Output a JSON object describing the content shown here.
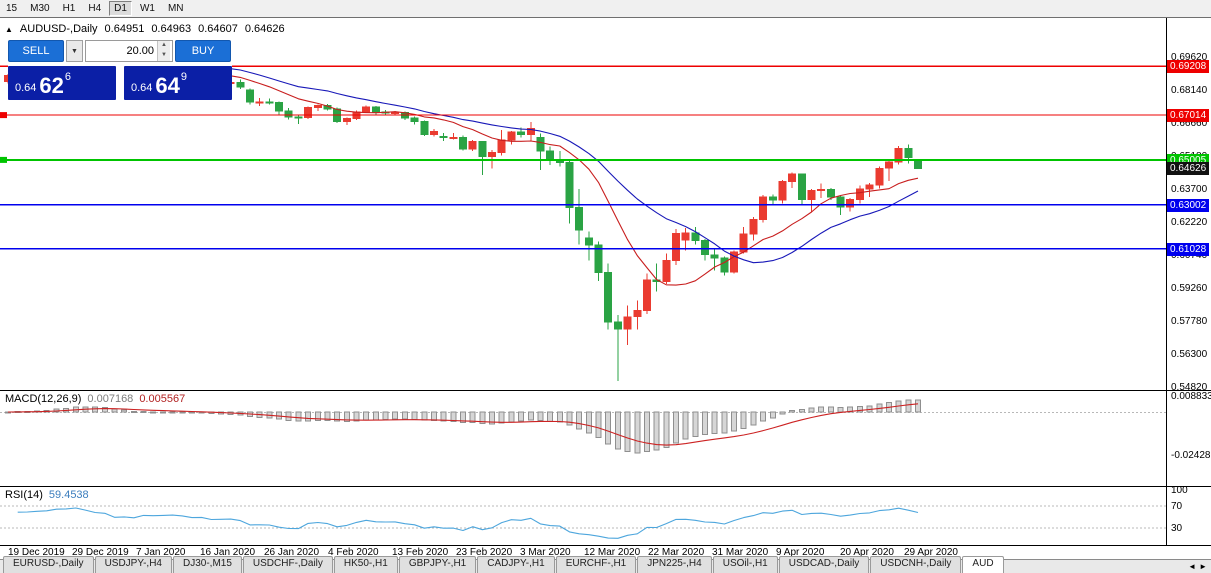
{
  "toolbar": {
    "timeframes": [
      {
        "label": "15",
        "active": false
      },
      {
        "label": "M30",
        "active": false
      },
      {
        "label": "H1",
        "active": false
      },
      {
        "label": "H4",
        "active": false
      },
      {
        "label": "D1",
        "active": true
      },
      {
        "label": "W1",
        "active": false
      },
      {
        "label": "MN",
        "active": false
      }
    ]
  },
  "icons": {
    "collapse": "▲",
    "dropdown": "▼",
    "spin_up": "▲",
    "spin_down": "▼",
    "tab_scroll_left": "◄",
    "tab_scroll_right": "►"
  },
  "chart_title": {
    "symbol": "AUDUSD-,Daily",
    "open": "0.64951",
    "high": "0.64963",
    "low": "0.64607",
    "close": "0.64626"
  },
  "one_click": {
    "sell_label": "SELL",
    "buy_label": "BUY",
    "volume": "20.00",
    "sell_price": {
      "prefix": "0.64",
      "big": "62",
      "sup": "6"
    },
    "buy_price": {
      "prefix": "0.64",
      "big": "64",
      "sup": "9"
    }
  },
  "chart_data": {
    "type": "candlestick",
    "symbol": "AUDUSD-",
    "timeframe": "Daily",
    "current_bar": {
      "open": 0.64951,
      "high": 0.64963,
      "low": 0.64607,
      "close": 0.64626
    },
    "up_color": "#ea3b30",
    "down_color": "#2aa344",
    "candles": [
      [
        "2019.12.19",
        0.6852,
        0.6885,
        0.6844,
        0.688
      ],
      [
        "2019.12.20",
        0.688,
        0.6905,
        0.6871,
        0.69
      ],
      [
        "2019.12.23",
        0.69,
        0.6915,
        0.6888,
        0.6905
      ],
      [
        "2019.12.24",
        0.6905,
        0.693,
        0.6898,
        0.6925
      ],
      [
        "2019.12.26",
        0.6925,
        0.6945,
        0.6916,
        0.694
      ],
      [
        "2019.12.27",
        0.694,
        0.699,
        0.6932,
        0.6986
      ],
      [
        "2019.12.30",
        0.6986,
        0.7005,
        0.697,
        0.6995
      ],
      [
        "2019.12.31",
        0.6995,
        0.703,
        0.6983,
        0.7021
      ],
      [
        "2020.01.02",
        0.7021,
        0.7025,
        0.698,
        0.6989
      ],
      [
        "2020.01.03",
        0.6989,
        0.6995,
        0.693,
        0.695
      ],
      [
        "2020.01.06",
        0.695,
        0.696,
        0.6925,
        0.6938
      ],
      [
        "2020.01.07",
        0.6938,
        0.6945,
        0.6855,
        0.6865
      ],
      [
        "2020.01.08",
        0.6865,
        0.689,
        0.6848,
        0.6874
      ],
      [
        "2020.01.09",
        0.6874,
        0.688,
        0.6838,
        0.6856
      ],
      [
        "2020.01.10",
        0.6856,
        0.6905,
        0.685,
        0.69
      ],
      [
        "2020.01.13",
        0.69,
        0.6912,
        0.688,
        0.6895
      ],
      [
        "2020.01.14",
        0.6895,
        0.6908,
        0.6877,
        0.69
      ],
      [
        "2020.01.15",
        0.69,
        0.692,
        0.6885,
        0.6905
      ],
      [
        "2020.01.16",
        0.6905,
        0.6912,
        0.688,
        0.6895
      ],
      [
        "2020.01.17",
        0.6895,
        0.69,
        0.686,
        0.6871
      ],
      [
        "2020.01.20",
        0.6871,
        0.6885,
        0.6858,
        0.6873
      ],
      [
        "2020.01.21",
        0.6873,
        0.6878,
        0.6826,
        0.6843
      ],
      [
        "2020.01.22",
        0.6843,
        0.6867,
        0.6835,
        0.6846
      ],
      [
        "2020.01.23",
        0.6846,
        0.6855,
        0.681,
        0.6848
      ],
      [
        "2020.01.24",
        0.6848,
        0.686,
        0.6818,
        0.6828
      ],
      [
        "2020.01.27",
        0.6815,
        0.682,
        0.675,
        0.676
      ],
      [
        "2020.01.28",
        0.676,
        0.6778,
        0.6743,
        0.6761
      ],
      [
        "2020.01.29",
        0.6761,
        0.6775,
        0.6748,
        0.6758
      ],
      [
        "2020.01.30",
        0.6758,
        0.6762,
        0.67,
        0.6719
      ],
      [
        "2020.01.31",
        0.6719,
        0.6733,
        0.6682,
        0.6693
      ],
      [
        "2020.02.03",
        0.6693,
        0.6705,
        0.6662,
        0.669
      ],
      [
        "2020.02.04",
        0.669,
        0.674,
        0.6685,
        0.6736
      ],
      [
        "2020.02.05",
        0.6736,
        0.675,
        0.672,
        0.6745
      ],
      [
        "2020.02.06",
        0.6745,
        0.6752,
        0.6722,
        0.6729
      ],
      [
        "2020.02.07",
        0.6729,
        0.6735,
        0.6665,
        0.6673
      ],
      [
        "2020.02.10",
        0.6673,
        0.669,
        0.6658,
        0.6686
      ],
      [
        "2020.02.11",
        0.6686,
        0.6722,
        0.668,
        0.6716
      ],
      [
        "2020.02.12",
        0.6716,
        0.6745,
        0.671,
        0.6738
      ],
      [
        "2020.02.13",
        0.6738,
        0.6742,
        0.6705,
        0.6716
      ],
      [
        "2020.02.14",
        0.6716,
        0.6725,
        0.67,
        0.6713
      ],
      [
        "2020.02.17",
        0.6713,
        0.672,
        0.67,
        0.6714
      ],
      [
        "2020.02.18",
        0.6714,
        0.6718,
        0.668,
        0.6689
      ],
      [
        "2020.02.19",
        0.6689,
        0.6695,
        0.666,
        0.6673
      ],
      [
        "2020.02.20",
        0.6673,
        0.6678,
        0.6608,
        0.6615
      ],
      [
        "2020.02.21",
        0.6615,
        0.664,
        0.6605,
        0.6627
      ],
      [
        "2020.02.24",
        0.6605,
        0.6622,
        0.6585,
        0.66
      ],
      [
        "2020.02.25",
        0.66,
        0.6622,
        0.6592,
        0.6601
      ],
      [
        "2020.02.26",
        0.6601,
        0.661,
        0.6542,
        0.655
      ],
      [
        "2020.02.27",
        0.655,
        0.659,
        0.654,
        0.6582
      ],
      [
        "2020.02.28",
        0.6582,
        0.6585,
        0.6433,
        0.6515
      ],
      [
        "2020.03.02",
        0.6515,
        0.6545,
        0.6463,
        0.6533
      ],
      [
        "2020.03.03",
        0.6533,
        0.6635,
        0.652,
        0.6589
      ],
      [
        "2020.03.04",
        0.6589,
        0.663,
        0.657,
        0.6625
      ],
      [
        "2020.03.05",
        0.6625,
        0.6645,
        0.66,
        0.6615
      ],
      [
        "2020.03.06",
        0.6615,
        0.667,
        0.6585,
        0.6641
      ],
      [
        "2020.03.09",
        0.66,
        0.662,
        0.6455,
        0.654
      ],
      [
        "2020.03.10",
        0.654,
        0.656,
        0.6477,
        0.65
      ],
      [
        "2020.03.11",
        0.65,
        0.654,
        0.647,
        0.6489
      ],
      [
        "2020.03.12",
        0.6489,
        0.6495,
        0.6215,
        0.6287
      ],
      [
        "2020.03.13",
        0.6287,
        0.637,
        0.612,
        0.6185
      ],
      [
        "2020.03.16",
        0.615,
        0.618,
        0.605,
        0.6119
      ],
      [
        "2020.03.17",
        0.6119,
        0.6135,
        0.5958,
        0.5996
      ],
      [
        "2020.03.18",
        0.5996,
        0.6035,
        0.574,
        0.5773
      ],
      [
        "2020.03.19",
        0.5773,
        0.5805,
        0.551,
        0.5742
      ],
      [
        "2020.03.20",
        0.5742,
        0.5848,
        0.567,
        0.5797
      ],
      [
        "2020.03.23",
        0.5797,
        0.587,
        0.574,
        0.5825
      ],
      [
        "2020.03.24",
        0.5825,
        0.599,
        0.581,
        0.5962
      ],
      [
        "2020.03.25",
        0.5962,
        0.6035,
        0.591,
        0.5955
      ],
      [
        "2020.03.26",
        0.5955,
        0.608,
        0.5945,
        0.6049
      ],
      [
        "2020.03.27",
        0.6049,
        0.619,
        0.603,
        0.617
      ],
      [
        "2020.03.30",
        0.614,
        0.6195,
        0.6095,
        0.6172
      ],
      [
        "2020.03.31",
        0.6172,
        0.62,
        0.612,
        0.6138
      ],
      [
        "2020.04.01",
        0.6138,
        0.6145,
        0.605,
        0.6075
      ],
      [
        "2020.04.02",
        0.6075,
        0.6105,
        0.6005,
        0.606
      ],
      [
        "2020.04.03",
        0.606,
        0.6068,
        0.5982,
        0.5998
      ],
      [
        "2020.04.06",
        0.5998,
        0.6095,
        0.599,
        0.6087
      ],
      [
        "2020.04.07",
        0.6087,
        0.62,
        0.608,
        0.6168
      ],
      [
        "2020.04.08",
        0.6168,
        0.6245,
        0.614,
        0.6234
      ],
      [
        "2020.04.09",
        0.6234,
        0.6342,
        0.622,
        0.6335
      ],
      [
        "2020.04.10",
        0.6335,
        0.6345,
        0.63,
        0.632
      ],
      [
        "2020.04.13",
        0.632,
        0.641,
        0.6305,
        0.6404
      ],
      [
        "2020.04.14",
        0.6404,
        0.6445,
        0.6375,
        0.6437
      ],
      [
        "2020.04.15",
        0.6437,
        0.644,
        0.63,
        0.6323
      ],
      [
        "2020.04.16",
        0.6323,
        0.637,
        0.6265,
        0.6364
      ],
      [
        "2020.04.17",
        0.6364,
        0.6395,
        0.633,
        0.6368
      ],
      [
        "2020.04.20",
        0.6368,
        0.6375,
        0.632,
        0.6335
      ],
      [
        "2020.04.21",
        0.6335,
        0.634,
        0.6253,
        0.6289
      ],
      [
        "2020.04.22",
        0.6289,
        0.633,
        0.627,
        0.6323
      ],
      [
        "2020.04.23",
        0.6323,
        0.6385,
        0.6305,
        0.637
      ],
      [
        "2020.04.24",
        0.637,
        0.6398,
        0.6335,
        0.6388
      ],
      [
        "2020.04.27",
        0.6388,
        0.6472,
        0.6372,
        0.6463
      ],
      [
        "2020.04.28",
        0.6463,
        0.6505,
        0.6405,
        0.649
      ],
      [
        "2020.04.29",
        0.649,
        0.6562,
        0.648,
        0.6552
      ],
      [
        "2020.04.30",
        0.6552,
        0.657,
        0.6485,
        0.6512
      ],
      [
        "2020.05.01",
        0.64951,
        0.64963,
        0.64607,
        0.64626
      ]
    ],
    "moving_averages": [
      {
        "type": "sma",
        "period": 10,
        "color": "#c81e1e"
      },
      {
        "type": "sma",
        "period": 20,
        "color": "#1818b8"
      }
    ],
    "hlines": [
      {
        "price": 0.69208,
        "color": "#ee0000",
        "width": 1.2,
        "marker": false
      },
      {
        "price": 0.67014,
        "color": "#ee0000",
        "width": 1.2,
        "marker": true
      },
      {
        "price": 0.65005,
        "color": "#00c400",
        "width": 2.2,
        "marker": true
      },
      {
        "price": 0.63002,
        "color": "#0000ee",
        "width": 1.6,
        "marker": false
      },
      {
        "price": 0.61028,
        "color": "#0000ee",
        "width": 1.6,
        "marker": false
      }
    ],
    "bid_label": {
      "price": 0.64626,
      "bg": "#111111"
    },
    "price_axis_ticks": [
      0.6962,
      0.6814,
      0.6666,
      0.6518,
      0.637,
      0.6222,
      0.6074,
      0.5926,
      0.5778,
      0.563,
      0.5482
    ],
    "date_axis_labels": [
      "19 Dec 2019",
      "29 Dec 2019",
      "7 Jan 2020",
      "16 Jan 2020",
      "26 Jan 2020",
      "4 Feb 2020",
      "13 Feb 2020",
      "23 Feb 2020",
      "3 Mar 2020",
      "12 Mar 2020",
      "22 Mar 2020",
      "31 Mar 2020",
      "9 Apr 2020",
      "20 Apr 2020",
      "29 Apr 2020"
    ],
    "macd": {
      "name": "MACD(12,26,9)",
      "main_value": "0.007168",
      "signal_value": "0.005567",
      "axis_labels": [
        0.008833,
        -0.024281
      ],
      "histogram_color": "#d6d6d6",
      "signal_color": "#cc2222"
    },
    "rsi": {
      "name": "RSI(14)",
      "value": "59.4538",
      "levels": [
        70,
        30
      ],
      "axis_labels": [
        100,
        70,
        30
      ],
      "color": "#4da6dd"
    }
  },
  "bottom": {
    "tabs": [
      {
        "label": "EURUSD-,Daily",
        "active": false
      },
      {
        "label": "USDJPY-,H4",
        "active": false
      },
      {
        "label": "DJ30-,M15",
        "active": false
      },
      {
        "label": "USDCHF-,Daily",
        "active": false
      },
      {
        "label": "HK50-,H1",
        "active": false
      },
      {
        "label": "GBPJPY-,H1",
        "active": false
      },
      {
        "label": "CADJPY-,H1",
        "active": false
      },
      {
        "label": "EURCHF-,H1",
        "active": false
      },
      {
        "label": "JPN225-,H4",
        "active": false
      },
      {
        "label": "USOil-,H1",
        "active": false
      },
      {
        "label": "USDCAD-,Daily",
        "active": false
      },
      {
        "label": "USDCNH-,Daily",
        "active": false
      },
      {
        "label": "AUD",
        "active": true
      }
    ]
  }
}
